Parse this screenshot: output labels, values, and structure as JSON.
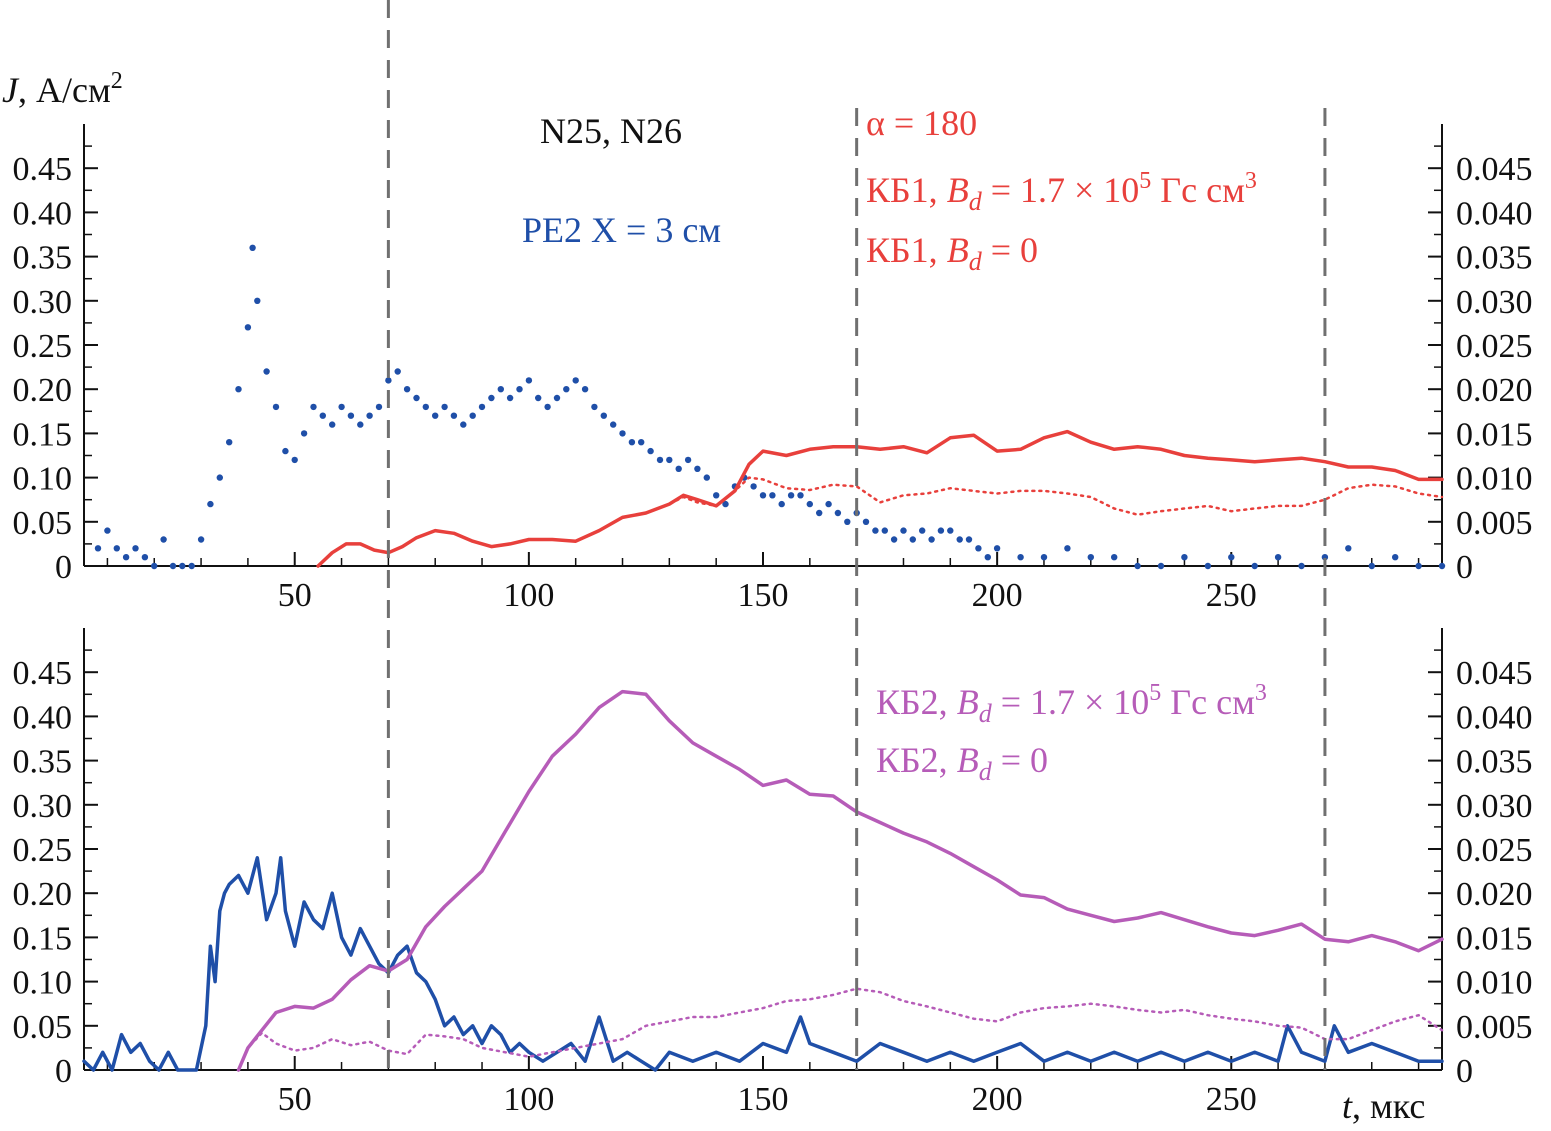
{
  "colors": {
    "blue": "#1f4fa8",
    "red": "#e8403c",
    "magenta": "#b65cb8",
    "dashed": "#707070",
    "axis": "#111111"
  },
  "labels": {
    "y_var": "J",
    "y_unit": ", А/см",
    "y_unit_sup": "2",
    "x_var": "t",
    "x_unit": ", мкс",
    "shots": "N25, N26",
    "pe2": "PE2 X = 3 см",
    "alpha": "α = 180",
    "kb1_bd_prefix": "КБ1, ",
    "kb1_bd_var": "B",
    "kb1_bd_sub": "d",
    "kb1_bd_mid": " = 1.7 × 10",
    "kb1_bd_exp": "5",
    "kb1_bd_unit": " Гс см",
    "kb1_bd_unit_exp": "3",
    "kb1_zero_prefix": "КБ1, ",
    "kb1_zero_var": "B",
    "kb1_zero_sub": "d",
    "kb1_zero_suffix": " = 0",
    "kb2_bd_prefix": "КБ2, ",
    "kb2_bd_var": "B",
    "kb2_bd_sub": "d",
    "kb2_bd_mid": " = 1.7 × 10",
    "kb2_bd_exp": "5",
    "kb2_bd_unit": " Гс см",
    "kb2_bd_unit_exp": "3",
    "kb2_zero_prefix": "КБ2, ",
    "kb2_zero_var": "B",
    "kb2_zero_sub": "d",
    "kb2_zero_suffix": " = 0"
  },
  "chart_data": [
    {
      "type": "line",
      "panel": "top",
      "xlim": [
        5,
        295
      ],
      "ylim_left": [
        0,
        0.5
      ],
      "ylim_right": [
        0,
        0.05
      ],
      "x_ticks": [
        "50",
        "100",
        "150",
        "200",
        "250"
      ],
      "y_ticks_left": [
        "0",
        "0.05",
        "0.10",
        "0.15",
        "0.20",
        "0.25",
        "0.30",
        "0.35",
        "0.40",
        "0.45"
      ],
      "y_ticks_right": [
        "0",
        "0.005",
        "0.010",
        "0.015",
        "0.020",
        "0.025",
        "0.030",
        "0.035",
        "0.040",
        "0.045"
      ],
      "vlines": [
        70,
        170,
        270
      ],
      "series": [
        {
          "name": "PE2 X = 3 см",
          "axis": "left",
          "style": "dotted-markers",
          "color": "#1f4fa8",
          "x": [
            8,
            10,
            12,
            14,
            16,
            18,
            20,
            22,
            24,
            26,
            28,
            30,
            32,
            34,
            36,
            38,
            40,
            41,
            42,
            44,
            46,
            48,
            50,
            52,
            54,
            56,
            58,
            60,
            62,
            64,
            66,
            68,
            70,
            72,
            74,
            76,
            78,
            80,
            82,
            84,
            86,
            88,
            90,
            92,
            94,
            96,
            98,
            100,
            102,
            104,
            106,
            108,
            110,
            112,
            114,
            116,
            118,
            120,
            122,
            124,
            126,
            128,
            130,
            132,
            134,
            136,
            138,
            140,
            142,
            144,
            146,
            148,
            150,
            152,
            154,
            156,
            158,
            160,
            162,
            164,
            166,
            168,
            170,
            172,
            174,
            176,
            178,
            180,
            182,
            184,
            186,
            188,
            190,
            192,
            194,
            196,
            198,
            200,
            205,
            210,
            215,
            220,
            225,
            230,
            235,
            240,
            245,
            250,
            255,
            260,
            265,
            270,
            275,
            280,
            285,
            290,
            295
          ],
          "y": [
            0.02,
            0.04,
            0.02,
            0.01,
            0.02,
            0.01,
            0.0,
            0.03,
            0.0,
            0.0,
            0.0,
            0.03,
            0.07,
            0.1,
            0.14,
            0.2,
            0.27,
            0.36,
            0.3,
            0.22,
            0.18,
            0.13,
            0.12,
            0.15,
            0.18,
            0.17,
            0.16,
            0.18,
            0.17,
            0.16,
            0.17,
            0.18,
            0.21,
            0.22,
            0.2,
            0.19,
            0.18,
            0.17,
            0.18,
            0.17,
            0.16,
            0.17,
            0.18,
            0.19,
            0.2,
            0.19,
            0.2,
            0.21,
            0.19,
            0.18,
            0.19,
            0.2,
            0.21,
            0.2,
            0.18,
            0.17,
            0.16,
            0.15,
            0.14,
            0.14,
            0.13,
            0.12,
            0.12,
            0.11,
            0.12,
            0.11,
            0.1,
            0.08,
            0.07,
            0.09,
            0.1,
            0.09,
            0.08,
            0.08,
            0.07,
            0.08,
            0.08,
            0.07,
            0.06,
            0.07,
            0.06,
            0.05,
            0.06,
            0.05,
            0.04,
            0.04,
            0.03,
            0.04,
            0.03,
            0.04,
            0.03,
            0.04,
            0.04,
            0.03,
            0.03,
            0.02,
            0.01,
            0.02,
            0.01,
            0.01,
            0.02,
            0.01,
            0.01,
            0.0,
            0.0,
            0.01,
            0.0,
            0.01,
            0.0,
            0.01,
            0.0,
            0.01,
            0.02,
            0.0,
            0.01,
            0.0,
            0.0
          ]
        },
        {
          "name": "КБ1, Bd = 1.7 × 10^5 Гс см^3",
          "axis": "right",
          "style": "solid",
          "color": "#e8403c",
          "x": [
            55,
            58,
            61,
            64,
            67,
            70,
            73,
            76,
            80,
            84,
            88,
            92,
            96,
            100,
            105,
            110,
            115,
            120,
            125,
            130,
            133,
            136,
            140,
            144,
            147,
            150,
            155,
            160,
            165,
            170,
            175,
            180,
            185,
            190,
            195,
            200,
            205,
            210,
            215,
            220,
            225,
            230,
            235,
            240,
            245,
            250,
            255,
            260,
            265,
            270,
            275,
            280,
            285,
            290,
            295
          ],
          "y": [
            0.0,
            0.0015,
            0.0025,
            0.0025,
            0.0018,
            0.0015,
            0.0022,
            0.0032,
            0.004,
            0.0037,
            0.0028,
            0.0022,
            0.0025,
            0.003,
            0.003,
            0.0028,
            0.004,
            0.0055,
            0.006,
            0.007,
            0.008,
            0.0075,
            0.0068,
            0.0085,
            0.0115,
            0.013,
            0.0125,
            0.0132,
            0.0135,
            0.0135,
            0.0132,
            0.0135,
            0.0128,
            0.0145,
            0.0148,
            0.013,
            0.0132,
            0.0145,
            0.0152,
            0.014,
            0.0132,
            0.0135,
            0.0132,
            0.0125,
            0.0122,
            0.012,
            0.0118,
            0.012,
            0.0122,
            0.0118,
            0.0112,
            0.0112,
            0.0108,
            0.0098,
            0.0098
          ]
        },
        {
          "name": "КБ1, Bd = 0",
          "axis": "right",
          "style": "dotted",
          "color": "#e8403c",
          "x": [
            55,
            58,
            61,
            64,
            67,
            70,
            73,
            76,
            80,
            84,
            88,
            92,
            96,
            100,
            105,
            110,
            115,
            120,
            125,
            130,
            133,
            136,
            140,
            144,
            147,
            150,
            155,
            160,
            165,
            170,
            175,
            180,
            185,
            190,
            195,
            200,
            205,
            210,
            215,
            220,
            225,
            230,
            235,
            240,
            245,
            250,
            255,
            260,
            265,
            270,
            275,
            280,
            285,
            290,
            295
          ],
          "y": [
            0.0,
            0.0015,
            0.0025,
            0.0025,
            0.0018,
            0.0015,
            0.0022,
            0.0032,
            0.004,
            0.0037,
            0.0028,
            0.0022,
            0.0025,
            0.003,
            0.003,
            0.0028,
            0.004,
            0.0055,
            0.006,
            0.007,
            0.0078,
            0.0072,
            0.0068,
            0.0085,
            0.01,
            0.0098,
            0.0088,
            0.0086,
            0.0092,
            0.009,
            0.0072,
            0.008,
            0.0082,
            0.0088,
            0.0085,
            0.0082,
            0.0085,
            0.0085,
            0.0082,
            0.0078,
            0.0065,
            0.0058,
            0.0062,
            0.0065,
            0.0068,
            0.0062,
            0.0065,
            0.0068,
            0.0068,
            0.0075,
            0.0088,
            0.0092,
            0.009,
            0.0082,
            0.0078
          ]
        }
      ]
    },
    {
      "type": "line",
      "panel": "bottom",
      "xlim": [
        5,
        295
      ],
      "ylim_left": [
        0,
        0.5
      ],
      "ylim_right": [
        0,
        0.05
      ],
      "x_ticks": [
        "50",
        "100",
        "150",
        "200",
        "250"
      ],
      "y_ticks_left": [
        "0",
        "0.05",
        "0.10",
        "0.15",
        "0.20",
        "0.25",
        "0.30",
        "0.35",
        "0.40",
        "0.45"
      ],
      "y_ticks_right": [
        "0",
        "0.005",
        "0.010",
        "0.015",
        "0.020",
        "0.025",
        "0.030",
        "0.035",
        "0.040",
        "0.045"
      ],
      "vlines": [
        70,
        170,
        270
      ],
      "series": [
        {
          "name": "PE2 X = 3 см",
          "axis": "left",
          "style": "solid",
          "color": "#1f4fa8",
          "x": [
            5,
            7,
            9,
            11,
            13,
            15,
            17,
            19,
            21,
            23,
            25,
            27,
            29,
            31,
            32,
            33,
            34,
            35,
            36,
            38,
            40,
            42,
            44,
            46,
            47,
            48,
            50,
            52,
            54,
            56,
            58,
            60,
            62,
            64,
            66,
            68,
            70,
            72,
            74,
            76,
            78,
            80,
            82,
            84,
            86,
            88,
            90,
            92,
            94,
            96,
            98,
            100,
            103,
            106,
            109,
            112,
            115,
            118,
            121,
            124,
            127,
            130,
            135,
            140,
            145,
            150,
            155,
            158,
            160,
            165,
            170,
            175,
            180,
            185,
            190,
            195,
            200,
            205,
            210,
            215,
            220,
            225,
            230,
            235,
            240,
            245,
            250,
            255,
            260,
            262,
            265,
            270,
            272,
            275,
            280,
            285,
            290,
            295
          ],
          "y": [
            0.01,
            0.0,
            0.02,
            0.0,
            0.04,
            0.02,
            0.03,
            0.01,
            0.0,
            0.02,
            0.0,
            0.0,
            0.0,
            0.05,
            0.14,
            0.1,
            0.18,
            0.2,
            0.21,
            0.22,
            0.2,
            0.24,
            0.17,
            0.2,
            0.24,
            0.18,
            0.14,
            0.19,
            0.17,
            0.16,
            0.2,
            0.15,
            0.13,
            0.16,
            0.14,
            0.12,
            0.11,
            0.13,
            0.14,
            0.11,
            0.1,
            0.08,
            0.05,
            0.06,
            0.04,
            0.05,
            0.03,
            0.05,
            0.04,
            0.02,
            0.03,
            0.02,
            0.01,
            0.02,
            0.03,
            0.01,
            0.06,
            0.01,
            0.02,
            0.01,
            0.0,
            0.02,
            0.01,
            0.02,
            0.01,
            0.03,
            0.02,
            0.06,
            0.03,
            0.02,
            0.01,
            0.03,
            0.02,
            0.01,
            0.02,
            0.01,
            0.02,
            0.03,
            0.01,
            0.02,
            0.01,
            0.02,
            0.01,
            0.02,
            0.01,
            0.02,
            0.01,
            0.02,
            0.01,
            0.05,
            0.02,
            0.01,
            0.05,
            0.02,
            0.03,
            0.02,
            0.01,
            0.01
          ]
        },
        {
          "name": "КБ2, Bd = 1.7 × 10^5 Гс см^3",
          "axis": "right",
          "style": "solid",
          "color": "#b65cb8",
          "x": [
            38,
            40,
            43,
            46,
            50,
            54,
            58,
            62,
            66,
            70,
            74,
            78,
            82,
            86,
            90,
            95,
            100,
            105,
            110,
            115,
            120,
            125,
            130,
            135,
            140,
            145,
            150,
            155,
            160,
            165,
            170,
            175,
            180,
            185,
            190,
            195,
            200,
            205,
            210,
            215,
            220,
            225,
            230,
            235,
            240,
            245,
            250,
            255,
            260,
            265,
            270,
            275,
            280,
            285,
            290,
            295
          ],
          "y": [
            0.0,
            0.0025,
            0.0045,
            0.0065,
            0.0072,
            0.007,
            0.008,
            0.0102,
            0.0118,
            0.0112,
            0.0125,
            0.0162,
            0.0185,
            0.0205,
            0.0225,
            0.027,
            0.0315,
            0.0355,
            0.038,
            0.041,
            0.0428,
            0.0425,
            0.0395,
            0.037,
            0.0355,
            0.034,
            0.0322,
            0.0328,
            0.0312,
            0.031,
            0.0292,
            0.028,
            0.0268,
            0.0258,
            0.0245,
            0.023,
            0.0215,
            0.0198,
            0.0195,
            0.0182,
            0.0175,
            0.0168,
            0.0172,
            0.0178,
            0.017,
            0.0162,
            0.0155,
            0.0152,
            0.0158,
            0.0165,
            0.0148,
            0.0145,
            0.0152,
            0.0145,
            0.0135,
            0.0148
          ]
        },
        {
          "name": "КБ2, Bd = 0",
          "axis": "right",
          "style": "dotted",
          "color": "#b65cb8",
          "x": [
            38,
            40,
            43,
            46,
            50,
            54,
            58,
            62,
            66,
            70,
            74,
            78,
            82,
            86,
            90,
            95,
            100,
            105,
            110,
            115,
            120,
            125,
            130,
            135,
            140,
            145,
            150,
            155,
            160,
            165,
            170,
            175,
            180,
            185,
            190,
            195,
            200,
            205,
            210,
            215,
            220,
            225,
            230,
            235,
            240,
            245,
            250,
            255,
            260,
            265,
            270,
            275,
            280,
            285,
            290,
            295
          ],
          "y": [
            0.0,
            0.0025,
            0.0042,
            0.003,
            0.0022,
            0.0025,
            0.0035,
            0.0028,
            0.0032,
            0.0022,
            0.0018,
            0.004,
            0.0038,
            0.0035,
            0.0025,
            0.002,
            0.0015,
            0.002,
            0.0025,
            0.003,
            0.0035,
            0.005,
            0.0055,
            0.006,
            0.006,
            0.0065,
            0.007,
            0.0078,
            0.008,
            0.0085,
            0.0092,
            0.0088,
            0.0078,
            0.0072,
            0.0065,
            0.0058,
            0.0055,
            0.0065,
            0.007,
            0.0072,
            0.0075,
            0.0072,
            0.0068,
            0.0065,
            0.0068,
            0.0062,
            0.0058,
            0.0055,
            0.005,
            0.0048,
            0.0035,
            0.0035,
            0.0045,
            0.0055,
            0.0062,
            0.0045
          ]
        }
      ]
    }
  ]
}
